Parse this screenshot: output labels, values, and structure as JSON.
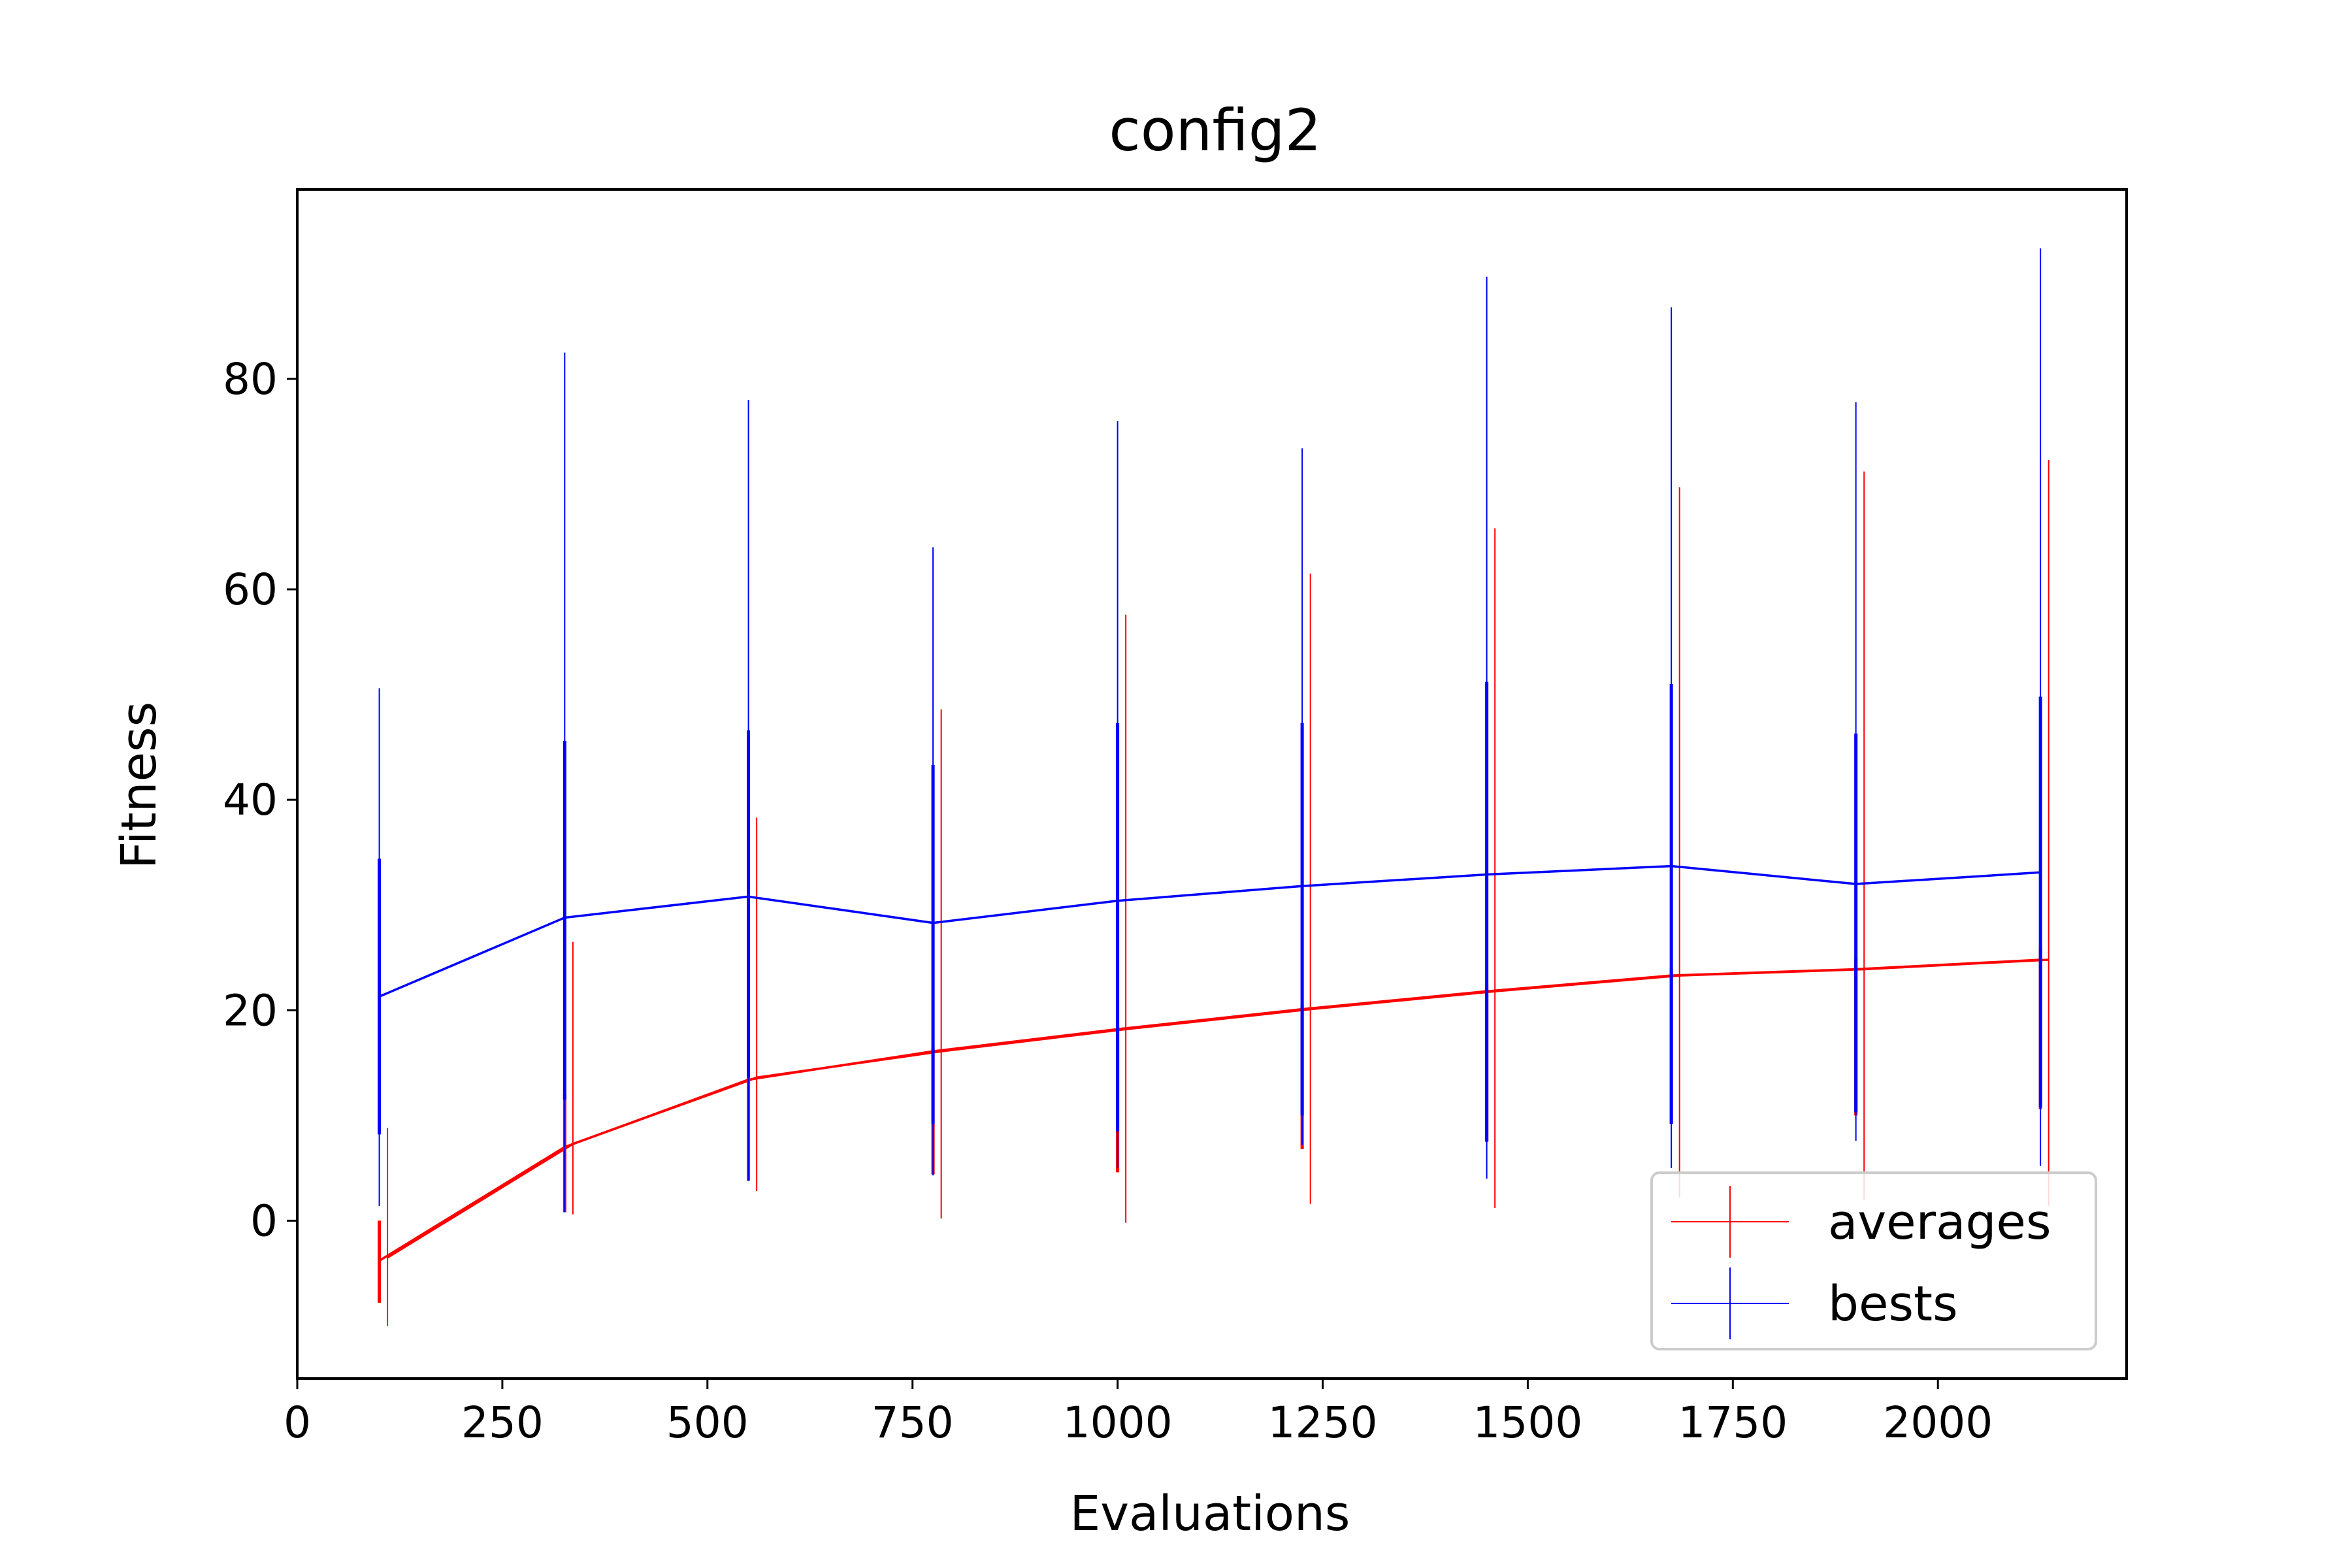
{
  "chart_data": {
    "type": "line",
    "title": "config2",
    "xlabel": "Evaluations",
    "ylabel": "Fitness",
    "xlim": [
      0,
      2230
    ],
    "ylim": [
      -15,
      98
    ],
    "xticks": [
      0,
      250,
      500,
      750,
      1000,
      1250,
      1500,
      1750,
      2000
    ],
    "xtick_labels": [
      "0",
      "250",
      "500",
      "750",
      "1000",
      "1250",
      "1500",
      "1750",
      "2000"
    ],
    "yticks": [
      0,
      20,
      40,
      60,
      80
    ],
    "ytick_labels": [
      "0",
      "20",
      "40",
      "60",
      "80"
    ],
    "grid": false,
    "legend_position": "lower-right",
    "series": [
      {
        "name": "averages",
        "color": "#ff0000",
        "x": [
          100,
          326,
          550,
          775,
          1000,
          1225,
          1450,
          1675,
          1900,
          2125
        ],
        "y": [
          -3.8,
          7.0,
          13.4,
          16.1,
          18.2,
          20.1,
          21.8,
          23.3,
          23.9,
          24.8
        ],
        "x_alt": [
          110,
          336,
          560,
          785,
          1010,
          1235,
          1460,
          1685,
          1910,
          2135
        ],
        "y_alt": [
          -3.5,
          7.3,
          13.6,
          16.1,
          18.2,
          20.1,
          21.8,
          23.3,
          23.9,
          24.8
        ],
        "err_outer_low": [
          -10.0,
          0.6,
          2.8,
          0.2,
          -0.2,
          1.6,
          1.2,
          2.2,
          2.0,
          1.4
        ],
        "err_outer_high": [
          8.8,
          26.5,
          38.3,
          48.6,
          57.6,
          61.5,
          65.8,
          69.7,
          71.2,
          72.3
        ],
        "err_inner_low": [
          -7.8,
          0.8,
          3.8,
          4.4,
          4.6,
          6.8,
          7.6,
          9.2,
          10.0,
          10.6
        ],
        "err_inner_high": [
          0.0,
          12.0,
          14.0,
          16.5,
          18.5,
          20.5,
          22.5,
          24.0,
          25.0,
          26.0
        ]
      },
      {
        "name": "bests",
        "color": "#0000ff",
        "x": [
          100,
          326,
          550,
          775,
          1000,
          1225,
          1450,
          1675,
          1900,
          2125
        ],
        "y": [
          21.3,
          28.8,
          30.8,
          28.3,
          30.4,
          31.8,
          32.9,
          33.7,
          32.0,
          33.1
        ],
        "err_outer_low": [
          1.4,
          0.8,
          3.8,
          4.3,
          5.0,
          7.2,
          4.0,
          5.0,
          7.6,
          5.2
        ],
        "err_outer_high": [
          50.6,
          82.5,
          78.0,
          64.0,
          76.0,
          73.4,
          89.7,
          86.8,
          77.8,
          92.4
        ],
        "err_inner_low": [
          8.2,
          11.5,
          13.6,
          9.2,
          8.5,
          10.0,
          7.5,
          9.2,
          10.3,
          10.8
        ],
        "err_inner_high": [
          34.4,
          45.6,
          46.6,
          43.3,
          47.3,
          47.3,
          51.2,
          51.0,
          46.3,
          49.8
        ]
      }
    ]
  }
}
